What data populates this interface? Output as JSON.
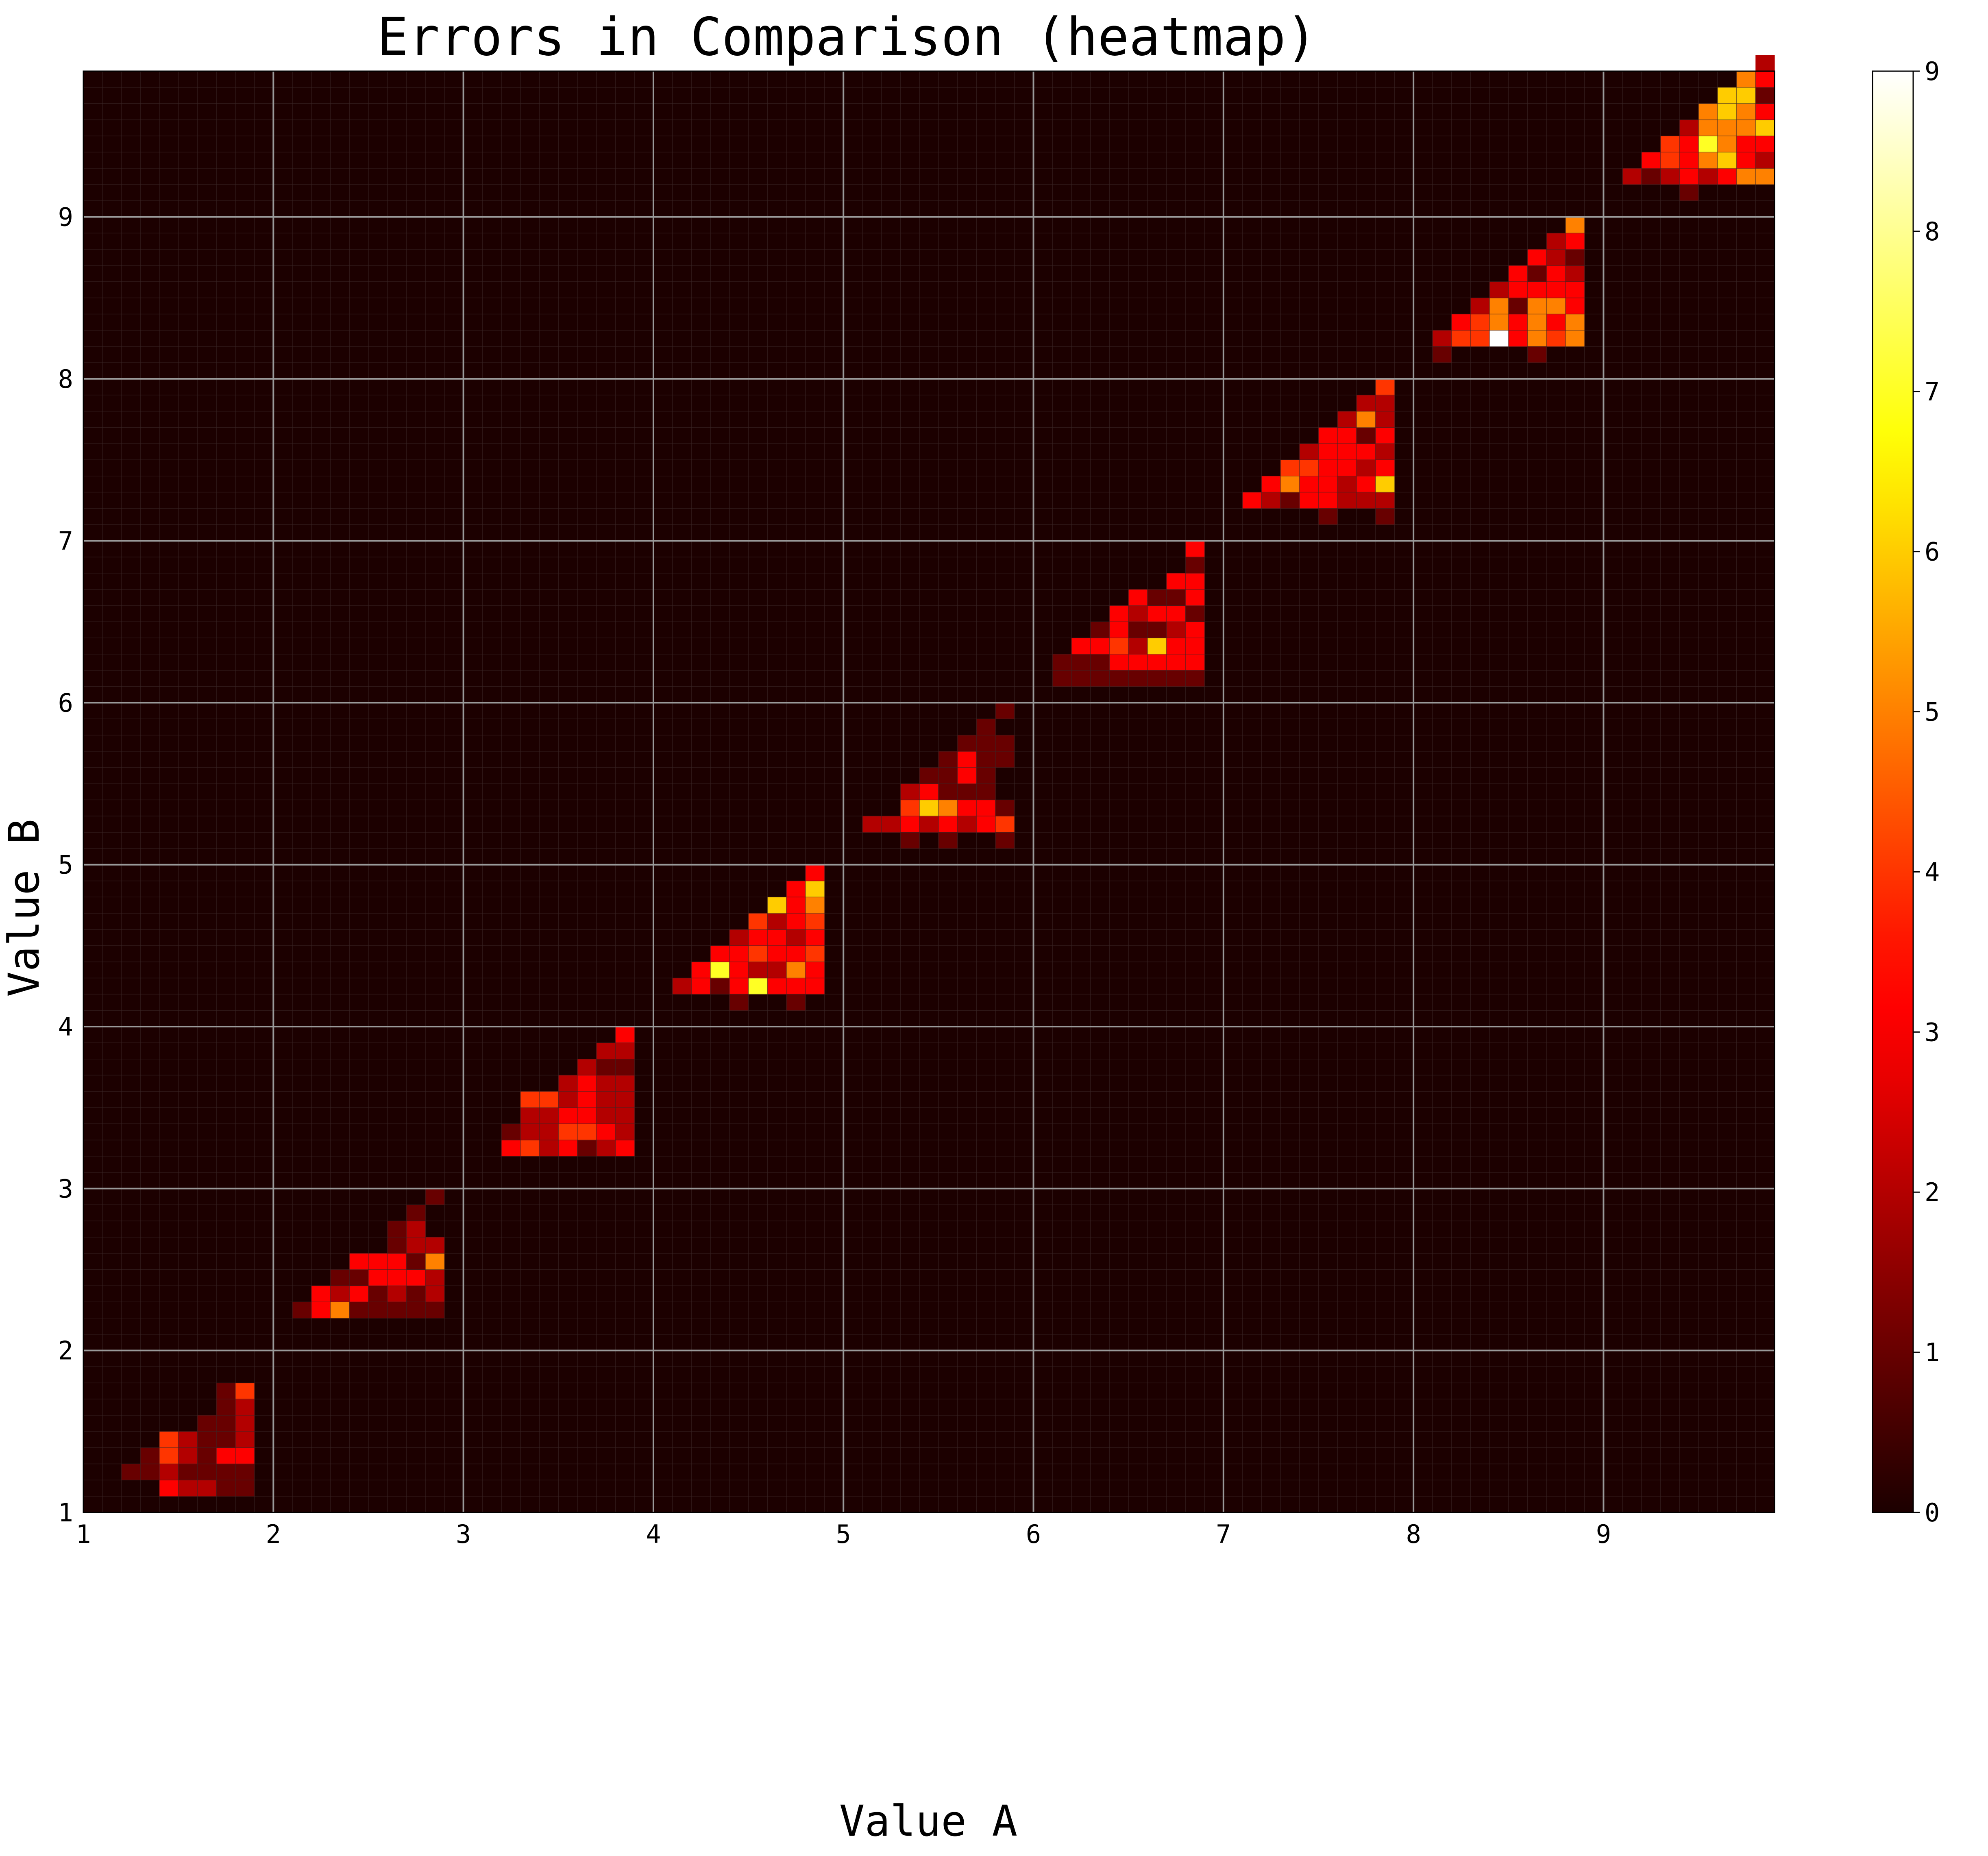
{
  "chart_data": {
    "type": "heatmap",
    "title": "Errors in Comparison (heatmap)",
    "xlabel": "Value A",
    "ylabel": "Value B",
    "xlim": [
      1,
      9.9
    ],
    "ylim": [
      1,
      9.9
    ],
    "bin_size": 0.1,
    "grid": true,
    "colormap": "hot",
    "colors": {
      "grid_major": "#9a9a9a",
      "grid_minor": "#3a2626",
      "frame": "#000000"
    },
    "x_ticks": [
      1,
      2,
      3,
      4,
      5,
      6,
      7,
      8,
      9
    ],
    "x_tick_labels": [
      "1",
      "2",
      "3",
      "4",
      "5",
      "6",
      "7",
      "8",
      "9"
    ],
    "y_ticks": [
      1,
      2,
      3,
      4,
      5,
      6,
      7,
      8,
      9
    ],
    "y_tick_labels": [
      "1",
      "2",
      "3",
      "4",
      "5",
      "6",
      "7",
      "8",
      "9"
    ],
    "colorbar": {
      "min": 0,
      "max": 9,
      "ticks": [
        0,
        1,
        2,
        3,
        4,
        5,
        6,
        7,
        8,
        9
      ],
      "tick_labels": [
        "0",
        "1",
        "2",
        "3",
        "4",
        "5",
        "6",
        "7",
        "8",
        "9"
      ]
    },
    "cells": [
      [
        1.2,
        1.2,
        1
      ],
      [
        1.3,
        1.2,
        1
      ],
      [
        1.4,
        1.2,
        2
      ],
      [
        1.5,
        1.2,
        1
      ],
      [
        1.6,
        1.2,
        1
      ],
      [
        1.7,
        1.2,
        1
      ],
      [
        1.8,
        1.2,
        1
      ],
      [
        1.3,
        1.3,
        1
      ],
      [
        1.4,
        1.3,
        4
      ],
      [
        1.5,
        1.3,
        2
      ],
      [
        1.6,
        1.3,
        1
      ],
      [
        1.7,
        1.3,
        3
      ],
      [
        1.8,
        1.3,
        3
      ],
      [
        1.4,
        1.4,
        4
      ],
      [
        1.5,
        1.4,
        2
      ],
      [
        1.6,
        1.4,
        1
      ],
      [
        1.7,
        1.4,
        1
      ],
      [
        1.8,
        1.4,
        2
      ],
      [
        1.6,
        1.5,
        1
      ],
      [
        1.7,
        1.5,
        1
      ],
      [
        1.8,
        1.5,
        2
      ],
      [
        1.7,
        1.6,
        1
      ],
      [
        1.8,
        1.6,
        2
      ],
      [
        1.7,
        1.7,
        1
      ],
      [
        1.8,
        1.7,
        4
      ],
      [
        1.4,
        1.1,
        3
      ],
      [
        1.5,
        1.1,
        2
      ],
      [
        1.6,
        1.1,
        2
      ],
      [
        1.7,
        1.1,
        1
      ],
      [
        1.8,
        1.1,
        1
      ],
      [
        2.1,
        2.2,
        1
      ],
      [
        2.2,
        2.2,
        3
      ],
      [
        2.3,
        2.2,
        5
      ],
      [
        2.4,
        2.2,
        1
      ],
      [
        2.5,
        2.2,
        1
      ],
      [
        2.6,
        2.2,
        1
      ],
      [
        2.7,
        2.2,
        1
      ],
      [
        2.8,
        2.2,
        1
      ],
      [
        2.2,
        2.3,
        3
      ],
      [
        2.3,
        2.3,
        2
      ],
      [
        2.4,
        2.3,
        3
      ],
      [
        2.5,
        2.3,
        1
      ],
      [
        2.6,
        2.3,
        2
      ],
      [
        2.7,
        2.3,
        1
      ],
      [
        2.8,
        2.3,
        2
      ],
      [
        2.3,
        2.4,
        1
      ],
      [
        2.4,
        2.4,
        1
      ],
      [
        2.5,
        2.4,
        3
      ],
      [
        2.6,
        2.4,
        3
      ],
      [
        2.7,
        2.4,
        3
      ],
      [
        2.8,
        2.4,
        2
      ],
      [
        2.4,
        2.5,
        3
      ],
      [
        2.5,
        2.5,
        3
      ],
      [
        2.6,
        2.5,
        3
      ],
      [
        2.7,
        2.5,
        1
      ],
      [
        2.8,
        2.5,
        5
      ],
      [
        2.6,
        2.6,
        1
      ],
      [
        2.7,
        2.6,
        2
      ],
      [
        2.8,
        2.6,
        2
      ],
      [
        2.6,
        2.7,
        1
      ],
      [
        2.7,
        2.7,
        2
      ],
      [
        2.7,
        2.8,
        1
      ],
      [
        2.8,
        2.9,
        1
      ],
      [
        3.2,
        3.2,
        3
      ],
      [
        3.3,
        3.2,
        4
      ],
      [
        3.4,
        3.2,
        2
      ],
      [
        3.5,
        3.2,
        3
      ],
      [
        3.6,
        3.2,
        1
      ],
      [
        3.7,
        3.2,
        2
      ],
      [
        3.8,
        3.2,
        3
      ],
      [
        3.2,
        3.3,
        1
      ],
      [
        3.3,
        3.3,
        2
      ],
      [
        3.4,
        3.3,
        2
      ],
      [
        3.5,
        3.3,
        4
      ],
      [
        3.6,
        3.3,
        4
      ],
      [
        3.7,
        3.3,
        3
      ],
      [
        3.8,
        3.3,
        2
      ],
      [
        3.3,
        3.4,
        2
      ],
      [
        3.4,
        3.4,
        2
      ],
      [
        3.5,
        3.4,
        3
      ],
      [
        3.6,
        3.4,
        3
      ],
      [
        3.7,
        3.4,
        2
      ],
      [
        3.8,
        3.4,
        2
      ],
      [
        3.3,
        3.5,
        4
      ],
      [
        3.4,
        3.5,
        4
      ],
      [
        3.5,
        3.5,
        2
      ],
      [
        3.6,
        3.5,
        3
      ],
      [
        3.7,
        3.5,
        2
      ],
      [
        3.8,
        3.5,
        2
      ],
      [
        3.5,
        3.6,
        2
      ],
      [
        3.6,
        3.6,
        3
      ],
      [
        3.7,
        3.6,
        2
      ],
      [
        3.8,
        3.6,
        2
      ],
      [
        3.6,
        3.7,
        2
      ],
      [
        3.7,
        3.7,
        1
      ],
      [
        3.8,
        3.7,
        1
      ],
      [
        3.7,
        3.8,
        2
      ],
      [
        3.8,
        3.8,
        2
      ],
      [
        3.8,
        3.9,
        3
      ],
      [
        4.1,
        4.2,
        2
      ],
      [
        4.2,
        4.2,
        3
      ],
      [
        4.3,
        4.2,
        1
      ],
      [
        4.4,
        4.2,
        3
      ],
      [
        4.5,
        4.2,
        7
      ],
      [
        4.6,
        4.2,
        3
      ],
      [
        4.7,
        4.2,
        3
      ],
      [
        4.8,
        4.2,
        3
      ],
      [
        4.2,
        4.3,
        3
      ],
      [
        4.3,
        4.3,
        7
      ],
      [
        4.4,
        4.3,
        3
      ],
      [
        4.5,
        4.3,
        2
      ],
      [
        4.6,
        4.3,
        2
      ],
      [
        4.7,
        4.3,
        5
      ],
      [
        4.8,
        4.3,
        3
      ],
      [
        4.3,
        4.4,
        3
      ],
      [
        4.4,
        4.4,
        3
      ],
      [
        4.5,
        4.4,
        4
      ],
      [
        4.6,
        4.4,
        3
      ],
      [
        4.7,
        4.4,
        3
      ],
      [
        4.8,
        4.4,
        4
      ],
      [
        4.4,
        4.5,
        2
      ],
      [
        4.5,
        4.5,
        3
      ],
      [
        4.6,
        4.5,
        3
      ],
      [
        4.7,
        4.5,
        2
      ],
      [
        4.8,
        4.5,
        3
      ],
      [
        4.5,
        4.6,
        4
      ],
      [
        4.6,
        4.6,
        2
      ],
      [
        4.7,
        4.6,
        3
      ],
      [
        4.8,
        4.6,
        4
      ],
      [
        4.6,
        4.7,
        6
      ],
      [
        4.7,
        4.7,
        3
      ],
      [
        4.8,
        4.7,
        5
      ],
      [
        4.7,
        4.8,
        3
      ],
      [
        4.8,
        4.8,
        6
      ],
      [
        4.8,
        4.9,
        3
      ],
      [
        4.4,
        4.1,
        1
      ],
      [
        4.7,
        4.1,
        1
      ],
      [
        5.1,
        5.2,
        2
      ],
      [
        5.2,
        5.2,
        2
      ],
      [
        5.3,
        5.2,
        3
      ],
      [
        5.4,
        5.2,
        2
      ],
      [
        5.5,
        5.2,
        3
      ],
      [
        5.6,
        5.2,
        2
      ],
      [
        5.7,
        5.2,
        3
      ],
      [
        5.8,
        5.2,
        4
      ],
      [
        5.3,
        5.3,
        4
      ],
      [
        5.4,
        5.3,
        6
      ],
      [
        5.5,
        5.3,
        5
      ],
      [
        5.6,
        5.3,
        3
      ],
      [
        5.7,
        5.3,
        3
      ],
      [
        5.8,
        5.3,
        1
      ],
      [
        5.3,
        5.4,
        2
      ],
      [
        5.4,
        5.4,
        3
      ],
      [
        5.5,
        5.4,
        1
      ],
      [
        5.6,
        5.4,
        1
      ],
      [
        5.7,
        5.4,
        1
      ],
      [
        5.4,
        5.5,
        1
      ],
      [
        5.5,
        5.5,
        1
      ],
      [
        5.6,
        5.5,
        3
      ],
      [
        5.7,
        5.5,
        1
      ],
      [
        5.5,
        5.6,
        1
      ],
      [
        5.6,
        5.6,
        3
      ],
      [
        5.7,
        5.6,
        1
      ],
      [
        5.8,
        5.6,
        1
      ],
      [
        5.6,
        5.7,
        1
      ],
      [
        5.7,
        5.7,
        1
      ],
      [
        5.8,
        5.7,
        1
      ],
      [
        5.7,
        5.8,
        1
      ],
      [
        5.8,
        5.9,
        1
      ],
      [
        5.3,
        5.1,
        1
      ],
      [
        5.5,
        5.1,
        1
      ],
      [
        5.8,
        5.1,
        1
      ],
      [
        6.1,
        6.2,
        1
      ],
      [
        6.2,
        6.2,
        1
      ],
      [
        6.3,
        6.2,
        1
      ],
      [
        6.4,
        6.2,
        3
      ],
      [
        6.5,
        6.2,
        3
      ],
      [
        6.6,
        6.2,
        3
      ],
      [
        6.7,
        6.2,
        3
      ],
      [
        6.8,
        6.2,
        3
      ],
      [
        6.1,
        6.1,
        1
      ],
      [
        6.2,
        6.1,
        1
      ],
      [
        6.3,
        6.1,
        1
      ],
      [
        6.4,
        6.1,
        1
      ],
      [
        6.5,
        6.1,
        1
      ],
      [
        6.6,
        6.1,
        1
      ],
      [
        6.7,
        6.1,
        1
      ],
      [
        6.8,
        6.1,
        1
      ],
      [
        6.2,
        6.3,
        3
      ],
      [
        6.3,
        6.3,
        3
      ],
      [
        6.4,
        6.3,
        4
      ],
      [
        6.5,
        6.3,
        2
      ],
      [
        6.6,
        6.3,
        6
      ],
      [
        6.7,
        6.3,
        3
      ],
      [
        6.8,
        6.3,
        3
      ],
      [
        6.3,
        6.4,
        1
      ],
      [
        6.4,
        6.4,
        3
      ],
      [
        6.5,
        6.4,
        1
      ],
      [
        6.6,
        6.4,
        1
      ],
      [
        6.7,
        6.4,
        2
      ],
      [
        6.8,
        6.4,
        3
      ],
      [
        6.4,
        6.5,
        3
      ],
      [
        6.5,
        6.5,
        2
      ],
      [
        6.6,
        6.5,
        3
      ],
      [
        6.7,
        6.5,
        3
      ],
      [
        6.8,
        6.5,
        1
      ],
      [
        6.5,
        6.6,
        3
      ],
      [
        6.6,
        6.6,
        1
      ],
      [
        6.7,
        6.6,
        1
      ],
      [
        6.8,
        6.6,
        3
      ],
      [
        6.7,
        6.7,
        3
      ],
      [
        6.8,
        6.7,
        3
      ],
      [
        6.8,
        6.8,
        1
      ],
      [
        6.8,
        6.9,
        3
      ],
      [
        7.1,
        7.2,
        3
      ],
      [
        7.2,
        7.2,
        2
      ],
      [
        7.3,
        7.2,
        1
      ],
      [
        7.4,
        7.2,
        3
      ],
      [
        7.5,
        7.2,
        3
      ],
      [
        7.6,
        7.2,
        2
      ],
      [
        7.7,
        7.2,
        2
      ],
      [
        7.8,
        7.2,
        2
      ],
      [
        7.2,
        7.3,
        3
      ],
      [
        7.3,
        7.3,
        5
      ],
      [
        7.4,
        7.3,
        3
      ],
      [
        7.5,
        7.3,
        3
      ],
      [
        7.6,
        7.3,
        2
      ],
      [
        7.7,
        7.3,
        3
      ],
      [
        7.8,
        7.3,
        6
      ],
      [
        7.3,
        7.4,
        4
      ],
      [
        7.4,
        7.4,
        4
      ],
      [
        7.5,
        7.4,
        3
      ],
      [
        7.6,
        7.4,
        3
      ],
      [
        7.7,
        7.4,
        2
      ],
      [
        7.8,
        7.4,
        3
      ],
      [
        7.4,
        7.5,
        2
      ],
      [
        7.5,
        7.5,
        3
      ],
      [
        7.6,
        7.5,
        3
      ],
      [
        7.7,
        7.5,
        3
      ],
      [
        7.8,
        7.5,
        2
      ],
      [
        7.5,
        7.6,
        3
      ],
      [
        7.6,
        7.6,
        3
      ],
      [
        7.7,
        7.6,
        1
      ],
      [
        7.8,
        7.6,
        3
      ],
      [
        7.6,
        7.7,
        2
      ],
      [
        7.7,
        7.7,
        5
      ],
      [
        7.8,
        7.7,
        2
      ],
      [
        7.7,
        7.8,
        2
      ],
      [
        7.8,
        7.8,
        2
      ],
      [
        7.8,
        7.9,
        4
      ],
      [
        7.5,
        7.1,
        1
      ],
      [
        7.8,
        7.1,
        1
      ],
      [
        8.1,
        8.2,
        2
      ],
      [
        8.2,
        8.2,
        4
      ],
      [
        8.3,
        8.2,
        4
      ],
      [
        8.4,
        8.2,
        9
      ],
      [
        8.5,
        8.2,
        3
      ],
      [
        8.6,
        8.2,
        5
      ],
      [
        8.7,
        8.2,
        4
      ],
      [
        8.8,
        8.2,
        5
      ],
      [
        8.2,
        8.3,
        3
      ],
      [
        8.3,
        8.3,
        4
      ],
      [
        8.4,
        8.3,
        5
      ],
      [
        8.5,
        8.3,
        3
      ],
      [
        8.6,
        8.3,
        5
      ],
      [
        8.7,
        8.3,
        3
      ],
      [
        8.8,
        8.3,
        5
      ],
      [
        8.3,
        8.4,
        2
      ],
      [
        8.4,
        8.4,
        5
      ],
      [
        8.5,
        8.4,
        1
      ],
      [
        8.6,
        8.4,
        5
      ],
      [
        8.7,
        8.4,
        5
      ],
      [
        8.8,
        8.4,
        3
      ],
      [
        8.4,
        8.5,
        2
      ],
      [
        8.5,
        8.5,
        3
      ],
      [
        8.6,
        8.5,
        3
      ],
      [
        8.7,
        8.5,
        3
      ],
      [
        8.8,
        8.5,
        3
      ],
      [
        8.5,
        8.6,
        3
      ],
      [
        8.6,
        8.6,
        1
      ],
      [
        8.7,
        8.6,
        3
      ],
      [
        8.8,
        8.6,
        2
      ],
      [
        8.6,
        8.7,
        3
      ],
      [
        8.7,
        8.7,
        2
      ],
      [
        8.8,
        8.7,
        1
      ],
      [
        8.7,
        8.8,
        2
      ],
      [
        8.8,
        8.8,
        3
      ],
      [
        8.8,
        8.9,
        5
      ],
      [
        8.1,
        8.1,
        1
      ],
      [
        8.6,
        8.1,
        1
      ],
      [
        9.1,
        9.2,
        2
      ],
      [
        9.2,
        9.2,
        1
      ],
      [
        9.3,
        9.2,
        2
      ],
      [
        9.4,
        9.2,
        3
      ],
      [
        9.5,
        9.2,
        2
      ],
      [
        9.6,
        9.2,
        3
      ],
      [
        9.7,
        9.2,
        5
      ],
      [
        9.8,
        9.2,
        5
      ],
      [
        9.2,
        9.3,
        3
      ],
      [
        9.3,
        9.3,
        4
      ],
      [
        9.4,
        9.3,
        3
      ],
      [
        9.5,
        9.3,
        5
      ],
      [
        9.6,
        9.3,
        6
      ],
      [
        9.7,
        9.3,
        3
      ],
      [
        9.8,
        9.3,
        2
      ],
      [
        9.3,
        9.4,
        4
      ],
      [
        9.4,
        9.4,
        3
      ],
      [
        9.5,
        9.4,
        7
      ],
      [
        9.6,
        9.4,
        5
      ],
      [
        9.7,
        9.4,
        3
      ],
      [
        9.8,
        9.4,
        3
      ],
      [
        9.4,
        9.5,
        2
      ],
      [
        9.5,
        9.5,
        5
      ],
      [
        9.6,
        9.5,
        5
      ],
      [
        9.7,
        9.5,
        5
      ],
      [
        9.8,
        9.5,
        6
      ],
      [
        9.5,
        9.6,
        5
      ],
      [
        9.6,
        9.6,
        6
      ],
      [
        9.7,
        9.6,
        5
      ],
      [
        9.8,
        9.6,
        3
      ],
      [
        9.6,
        9.7,
        6
      ],
      [
        9.7,
        9.7,
        6
      ],
      [
        9.8,
        9.7,
        1
      ],
      [
        9.7,
        9.8,
        5
      ],
      [
        9.8,
        9.8,
        3
      ],
      [
        9.8,
        9.9,
        2
      ],
      [
        9.4,
        9.1,
        1
      ]
    ]
  }
}
